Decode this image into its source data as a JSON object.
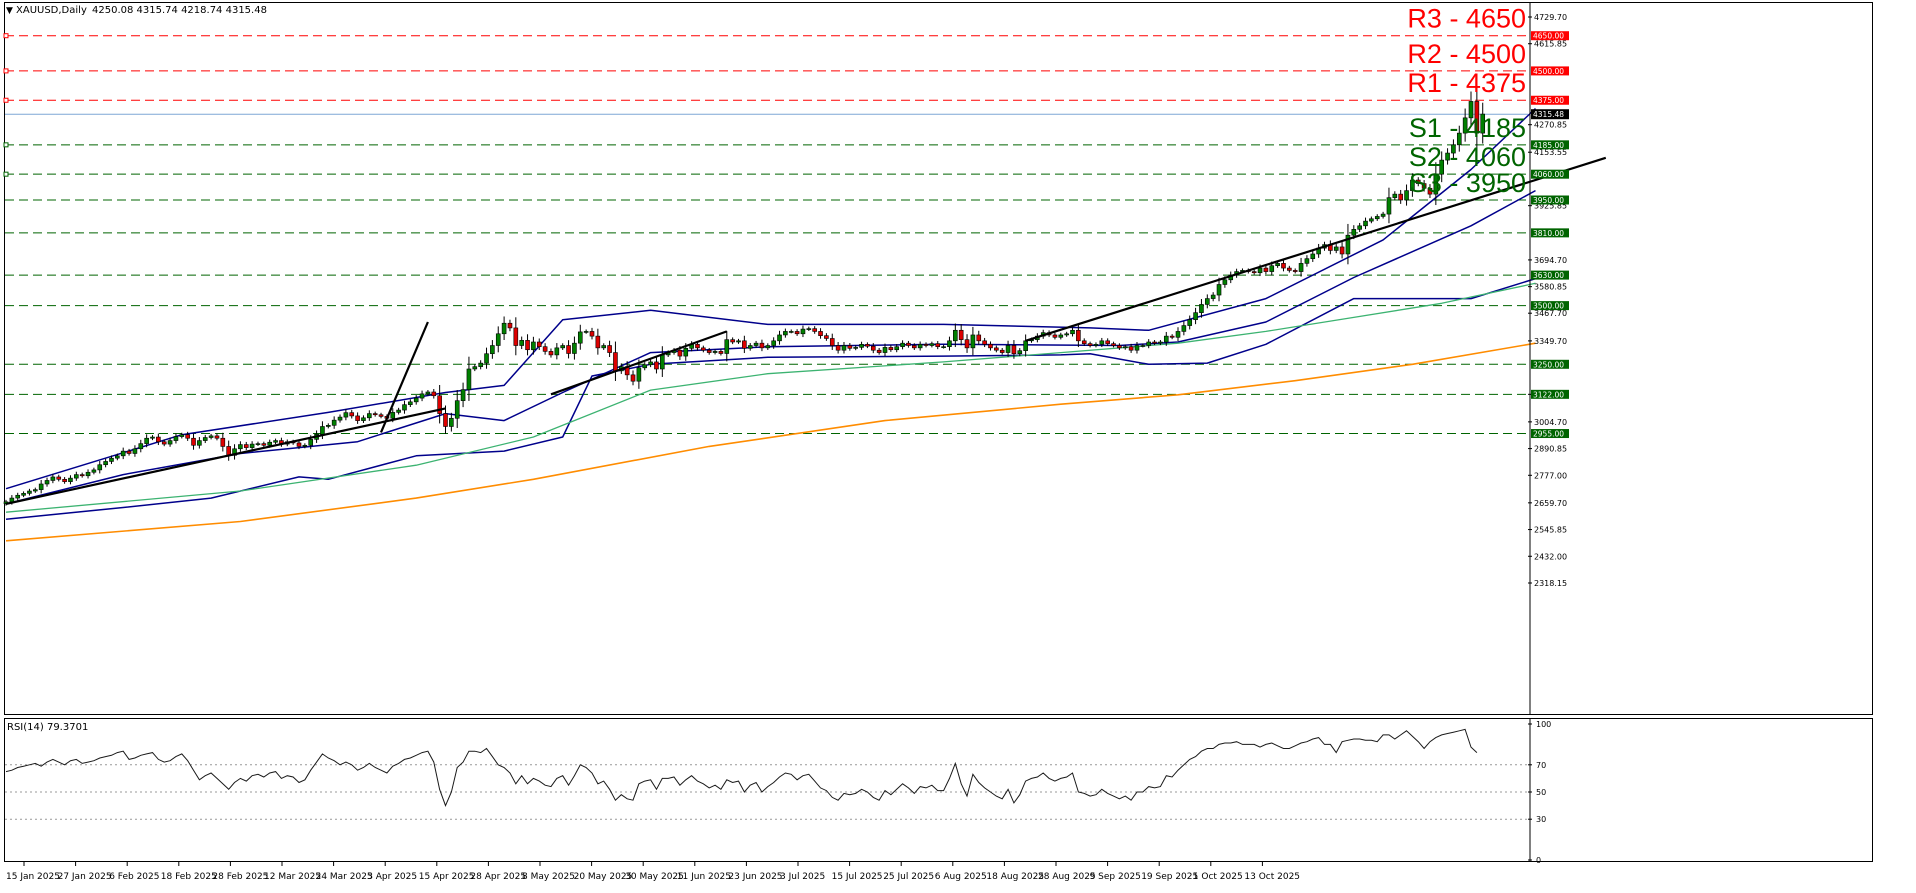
{
  "header": {
    "symbol_title": "XAUUSD,Daily",
    "ohlc": "4250.08 4315.74 4218.74 4315.48"
  },
  "rsi_panel": {
    "title": "RSI(14) 79.3701",
    "value": 79.37,
    "axis_ticks": [
      "100",
      "70",
      "50",
      "30",
      "0"
    ],
    "levels": [
      70,
      50,
      30
    ],
    "ylim": [
      0,
      100
    ]
  },
  "colors": {
    "resistance": "#ff0000",
    "support": "#006400",
    "bull_candle": "#008000",
    "bear_candle": "#dd0000",
    "bollinger": "#00008b",
    "ma_green": "#3cb371",
    "ma_orange": "#ff8c00",
    "trendline": "#000000",
    "current_price_line": "#7fa7d6",
    "rsi_line": "#1a1a1a",
    "grid_dash": "#888888"
  },
  "chart_data": {
    "type": "candlestick",
    "symbol": "XAUUSD",
    "timeframe": "Daily",
    "ylim": [
      2318.15,
      4750
    ],
    "y_tick_labels": [
      "4729.70",
      "4615.85",
      "4270.85",
      "4153.55",
      "3925.85",
      "3694.70",
      "3580.85",
      "3467.70",
      "3349.70",
      "3122.00",
      "3004.70",
      "2890.85",
      "2777.00",
      "2659.70",
      "2545.85",
      "2432.00",
      "2318.15"
    ],
    "x_tick_labels": [
      "15 Jan 2025",
      "27 Jan 2025",
      "6 Feb 2025",
      "18 Feb 2025",
      "28 Feb 2025",
      "12 Mar 2025",
      "24 Mar 2025",
      "3 Apr 2025",
      "15 Apr 2025",
      "28 Apr 2025",
      "8 May 2025",
      "20 May 2025",
      "30 May 2025",
      "11 Jun 2025",
      "23 Jun 2025",
      "3 Jul 2025",
      "15 Jul 2025",
      "25 Jul 2025",
      "6 Aug 2025",
      "18 Aug 2025",
      "28 Aug 2025",
      "9 Sep 2025",
      "19 Sep 2025",
      "1 Oct 2025",
      "13 Oct 2025"
    ],
    "current_price": "4315.48",
    "resistance_levels": [
      {
        "label": "R3 - 4650",
        "value": 4650,
        "tag": "4650.00"
      },
      {
        "label": "R2 - 4500",
        "value": 4500,
        "tag": "4500.00"
      },
      {
        "label": "R1 - 4375",
        "value": 4375,
        "tag": "4375.00"
      }
    ],
    "support_levels": [
      {
        "label": "S1 - 4185",
        "value": 4185,
        "tag": "4185.00"
      },
      {
        "label": "S2 - 4060",
        "value": 4060,
        "tag": "4060.00"
      },
      {
        "label": "S3 - 3950",
        "value": 3950,
        "tag": "3950.00"
      },
      {
        "label": "",
        "value": 3810,
        "tag": "3810.00"
      },
      {
        "label": "",
        "value": 3630,
        "tag": "3630.00"
      },
      {
        "label": "",
        "value": 3500,
        "tag": "3500.00"
      },
      {
        "label": "",
        "value": 3250,
        "tag": "3250.00"
      },
      {
        "label": "",
        "value": 3122,
        "tag": "3122.00"
      },
      {
        "label": "",
        "value": 2955,
        "tag": "2955.00"
      }
    ],
    "closes": [
      2664,
      2680,
      2692,
      2700,
      2710,
      2716,
      2740,
      2755,
      2770,
      2760,
      2750,
      2765,
      2780,
      2775,
      2790,
      2800,
      2822,
      2836,
      2850,
      2860,
      2880,
      2870,
      2890,
      2912,
      2935,
      2940,
      2920,
      2910,
      2925,
      2942,
      2950,
      2935,
      2905,
      2925,
      2938,
      2945,
      2935,
      2900,
      2862,
      2890,
      2908,
      2895,
      2910,
      2912,
      2905,
      2918,
      2925,
      2910,
      2920,
      2915,
      2900,
      2905,
      2930,
      2952,
      2985,
      2990,
      3012,
      3025,
      3044,
      3030,
      3010,
      3022,
      3040,
      3035,
      3028,
      3020,
      3045,
      3055,
      3078,
      3090,
      3106,
      3124,
      3132,
      3116,
      3040,
      2985,
      3020,
      3095,
      3142,
      3230,
      3240,
      3255,
      3295,
      3330,
      3380,
      3425,
      3405,
      3330,
      3352,
      3312,
      3345,
      3325,
      3305,
      3290,
      3320,
      3330,
      3296,
      3340,
      3388,
      3390,
      3370,
      3320,
      3330,
      3300,
      3222,
      3240,
      3205,
      3178,
      3235,
      3248,
      3260,
      3230,
      3290,
      3300,
      3310,
      3285,
      3318,
      3335,
      3320,
      3310,
      3300,
      3305,
      3296,
      3355,
      3345,
      3350,
      3318,
      3330,
      3340,
      3320,
      3330,
      3350,
      3375,
      3390,
      3390,
      3380,
      3400,
      3402,
      3390,
      3372,
      3360,
      3330,
      3310,
      3330,
      3318,
      3322,
      3335,
      3327,
      3310,
      3300,
      3322,
      3312,
      3325,
      3340,
      3330,
      3320,
      3335,
      3330,
      3338,
      3325,
      3325,
      3350,
      3395,
      3355,
      3320,
      3375,
      3350,
      3335,
      3320,
      3310,
      3300,
      3330,
      3295,
      3308,
      3350,
      3355,
      3370,
      3385,
      3375,
      3365,
      3375,
      3380,
      3395,
      3350,
      3338,
      3330,
      3335,
      3350,
      3338,
      3330,
      3320,
      3325,
      3310,
      3330,
      3330,
      3345,
      3340,
      3345,
      3370,
      3365,
      3390,
      3415,
      3440,
      3470,
      3505,
      3530,
      3545,
      3590,
      3610,
      3630,
      3645,
      3650,
      3645,
      3640,
      3660,
      3645,
      3670,
      3680,
      3660,
      3650,
      3645,
      3680,
      3700,
      3720,
      3745,
      3760,
      3735,
      3750,
      3720,
      3800,
      3825,
      3840,
      3860,
      3870,
      3880,
      3890,
      3960,
      3975,
      3950,
      3990,
      4035,
      4020,
      4000,
      3975,
      4060,
      4120,
      4150,
      4185,
      4235,
      4300,
      4370,
      4235,
      4316
    ],
    "series": [
      {
        "name": "",
        "kind": "bollinger_upper",
        "points": [
          [
            0,
            2720
          ],
          [
            30,
            2950
          ],
          [
            55,
            3045
          ],
          [
            75,
            3130
          ],
          [
            85,
            3160
          ],
          [
            95,
            3440
          ],
          [
            110,
            3480
          ],
          [
            130,
            3420
          ],
          [
            160,
            3420
          ],
          [
            185,
            3405
          ],
          [
            195,
            3395
          ],
          [
            215,
            3530
          ],
          [
            235,
            3780
          ],
          [
            250,
            4080
          ],
          [
            261,
            4340
          ]
        ]
      },
      {
        "name": "",
        "kind": "bollinger_middle",
        "points": [
          [
            0,
            2655
          ],
          [
            20,
            2780
          ],
          [
            40,
            2870
          ],
          [
            60,
            2920
          ],
          [
            75,
            3040
          ],
          [
            85,
            3010
          ],
          [
            95,
            3130
          ],
          [
            110,
            3300
          ],
          [
            130,
            3325
          ],
          [
            160,
            3335
          ],
          [
            190,
            3330
          ],
          [
            200,
            3345
          ],
          [
            215,
            3430
          ],
          [
            230,
            3620
          ],
          [
            250,
            3840
          ],
          [
            261,
            3990
          ]
        ]
      },
      {
        "name": "",
        "kind": "bollinger_lower",
        "points": [
          [
            0,
            2590
          ],
          [
            20,
            2640
          ],
          [
            35,
            2680
          ],
          [
            50,
            2770
          ],
          [
            55,
            2760
          ],
          [
            70,
            2860
          ],
          [
            85,
            2880
          ],
          [
            95,
            2940
          ],
          [
            100,
            3200
          ],
          [
            110,
            3250
          ],
          [
            130,
            3280
          ],
          [
            160,
            3285
          ],
          [
            180,
            3290
          ],
          [
            185,
            3295
          ],
          [
            195,
            3250
          ],
          [
            205,
            3255
          ],
          [
            215,
            3335
          ],
          [
            230,
            3530
          ],
          [
            250,
            3530
          ],
          [
            261,
            3615
          ]
        ]
      },
      {
        "name": "",
        "kind": "moving_average_fast",
        "points": [
          [
            0,
            2620
          ],
          [
            40,
            2710
          ],
          [
            70,
            2820
          ],
          [
            90,
            2940
          ],
          [
            110,
            3140
          ],
          [
            130,
            3210
          ],
          [
            160,
            3260
          ],
          [
            180,
            3300
          ],
          [
            200,
            3340
          ],
          [
            215,
            3390
          ],
          [
            230,
            3450
          ],
          [
            245,
            3510
          ],
          [
            261,
            3595
          ]
        ]
      },
      {
        "name": "",
        "kind": "moving_average_slow",
        "points": [
          [
            0,
            2498
          ],
          [
            40,
            2580
          ],
          [
            70,
            2680
          ],
          [
            90,
            2760
          ],
          [
            120,
            2900
          ],
          [
            150,
            3010
          ],
          [
            180,
            3080
          ],
          [
            200,
            3120
          ],
          [
            220,
            3180
          ],
          [
            240,
            3250
          ],
          [
            261,
            3340
          ]
        ]
      },
      {
        "name": "",
        "kind": "trendline",
        "points": [
          [
            0,
            2655
          ],
          [
            75,
            3062
          ]
        ]
      },
      {
        "name": "",
        "kind": "trendline",
        "points": [
          [
            64,
            2960
          ],
          [
            72,
            3430
          ]
        ]
      },
      {
        "name": "",
        "kind": "trendline",
        "points": [
          [
            93,
            3122
          ],
          [
            123,
            3390
          ]
        ]
      },
      {
        "name": "",
        "kind": "trendline",
        "points": [
          [
            174,
            3350
          ],
          [
            273,
            4130
          ]
        ]
      }
    ],
    "rsi_values": [
      65,
      66,
      68,
      69,
      70,
      71,
      69,
      72,
      74,
      72,
      70,
      73,
      74,
      71,
      72,
      73,
      75,
      76,
      77,
      79,
      80,
      74,
      75,
      77,
      78,
      79,
      74,
      72,
      73,
      76,
      78,
      73,
      66,
      59,
      62,
      64,
      60,
      56,
      52,
      57,
      60,
      58,
      62,
      63,
      61,
      64,
      65,
      60,
      62,
      61,
      57,
      59,
      66,
      72,
      78,
      75,
      73,
      70,
      72,
      70,
      66,
      68,
      71,
      68,
      66,
      64,
      69,
      71,
      74,
      75,
      77,
      79,
      80,
      72,
      52,
      40,
      50,
      68,
      72,
      80,
      80,
      79,
      82,
      76,
      70,
      68,
      64,
      56,
      62,
      56,
      60,
      58,
      55,
      54,
      60,
      62,
      55,
      62,
      70,
      68,
      64,
      56,
      58,
      52,
      44,
      48,
      45,
      44,
      56,
      58,
      59,
      52,
      60,
      60,
      61,
      55,
      59,
      62,
      58,
      56,
      53,
      55,
      52,
      59,
      57,
      58,
      50,
      55,
      57,
      50,
      54,
      57,
      61,
      64,
      63,
      59,
      62,
      63,
      58,
      53,
      51,
      46,
      44,
      49,
      48,
      49,
      52,
      50,
      46,
      44,
      51,
      48,
      52,
      56,
      53,
      49,
      54,
      53,
      55,
      51,
      51,
      60,
      71,
      56,
      47,
      63,
      57,
      53,
      50,
      47,
      45,
      52,
      42,
      48,
      58,
      60,
      61,
      64,
      60,
      58,
      60,
      61,
      64,
      50,
      49,
      47,
      48,
      52,
      49,
      47,
      45,
      47,
      44,
      50,
      50,
      54,
      53,
      54,
      62,
      61,
      66,
      70,
      74,
      76,
      80,
      82,
      82,
      85,
      86,
      86,
      87,
      85,
      85,
      85,
      83,
      85,
      86,
      84,
      82,
      82,
      84,
      86,
      87,
      89,
      90,
      85,
      85,
      79,
      87,
      88,
      89,
      89,
      88,
      88,
      87,
      92,
      92,
      89,
      92,
      95,
      91,
      87,
      82,
      87,
      90,
      92,
      93,
      94,
      95,
      96,
      83,
      79
    ]
  }
}
